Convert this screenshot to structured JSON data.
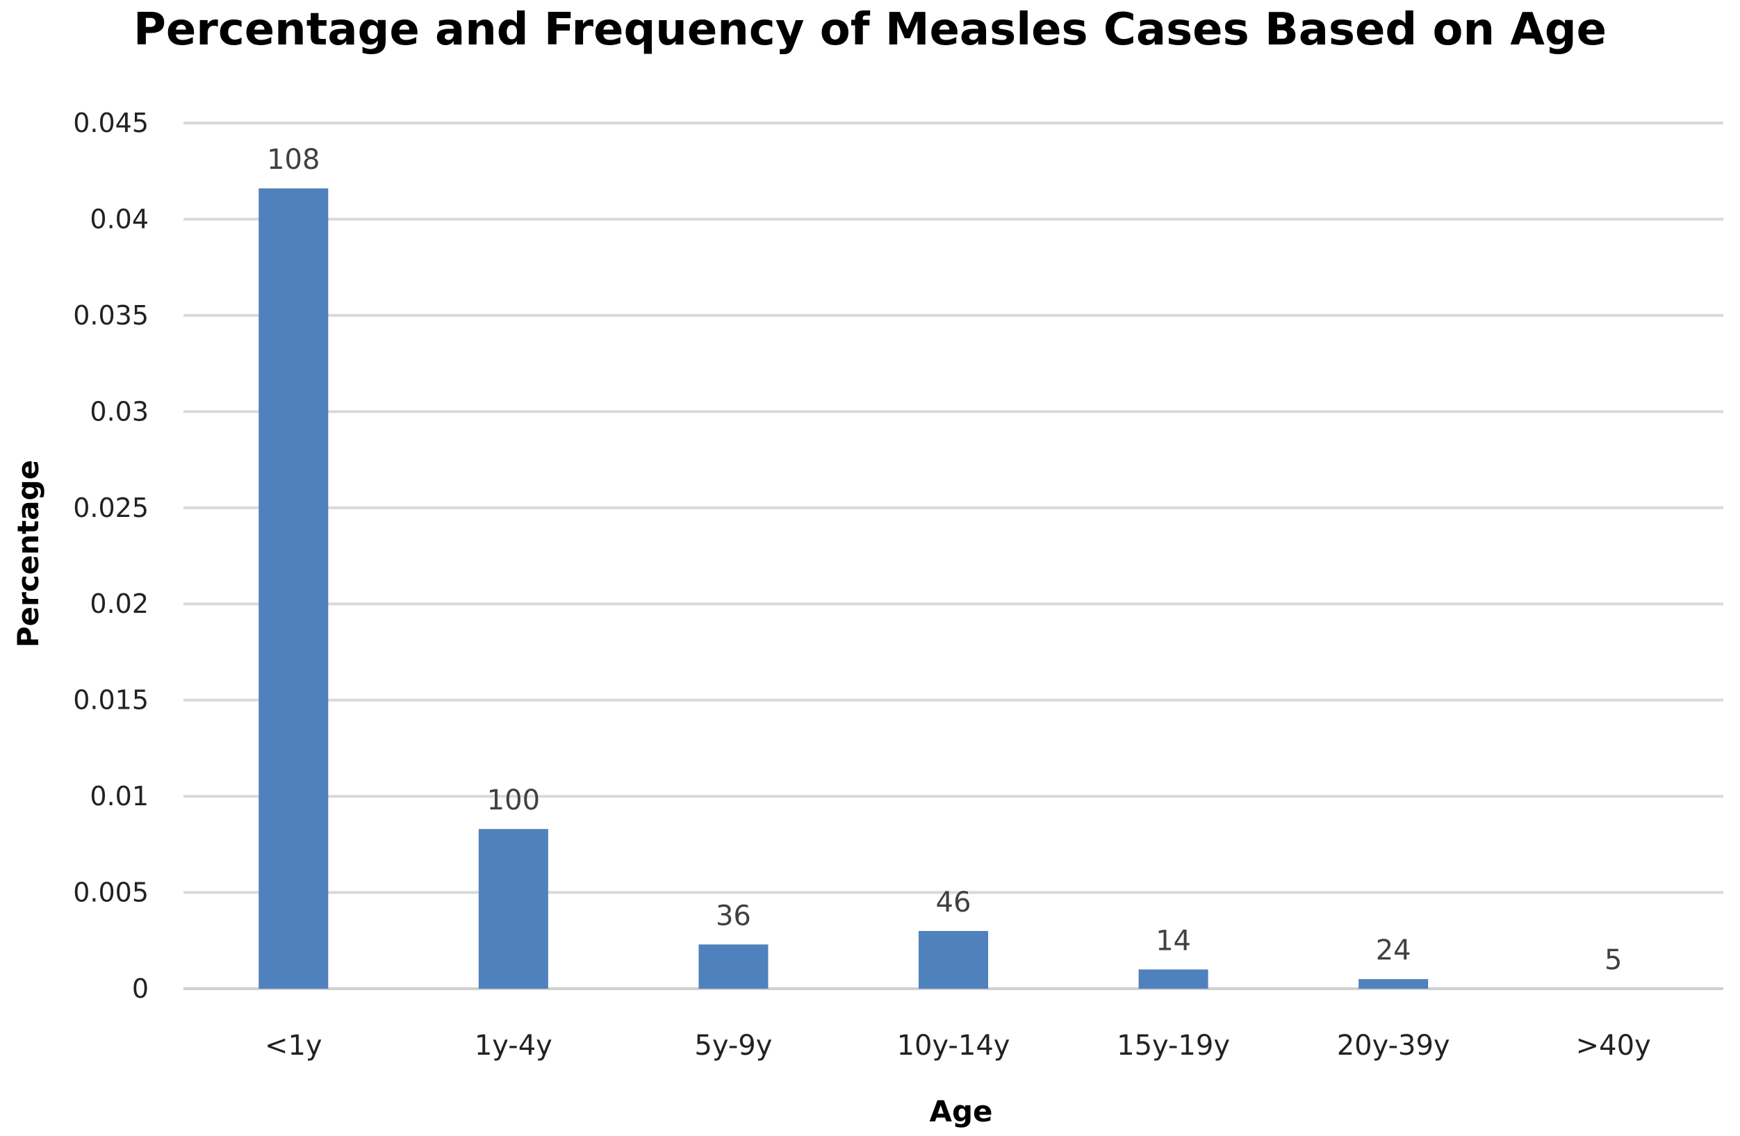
{
  "chart_data": {
    "type": "bar",
    "title": "Percentage and Frequency of Measles Cases Based on Age",
    "xlabel": "Age",
    "ylabel": "Percentage",
    "categories": [
      "<1y",
      "1y-4y",
      "5y-9y",
      "10y-14y",
      "15y-19y",
      "20y-39y",
      ">40y"
    ],
    "series": [
      {
        "name": "Percentage",
        "values": [
          0.0416,
          0.0083,
          0.0023,
          0.003,
          0.001,
          0.0005,
          0.0
        ],
        "data_labels": [
          "108",
          "100",
          "36",
          "46",
          "14",
          "24",
          "5"
        ]
      }
    ],
    "ylim": [
      0,
      0.045
    ],
    "yticks": [
      0,
      0.005,
      0.01,
      0.015,
      0.02,
      0.025,
      0.03,
      0.035,
      0.04,
      0.045
    ],
    "ytick_labels": [
      "0",
      "0.005",
      "0.01",
      "0.015",
      "0.02",
      "0.025",
      "0.03",
      "0.035",
      "0.04",
      "0.045"
    ],
    "grid": true,
    "legend": "none",
    "bar_color": "#4f81bd"
  }
}
